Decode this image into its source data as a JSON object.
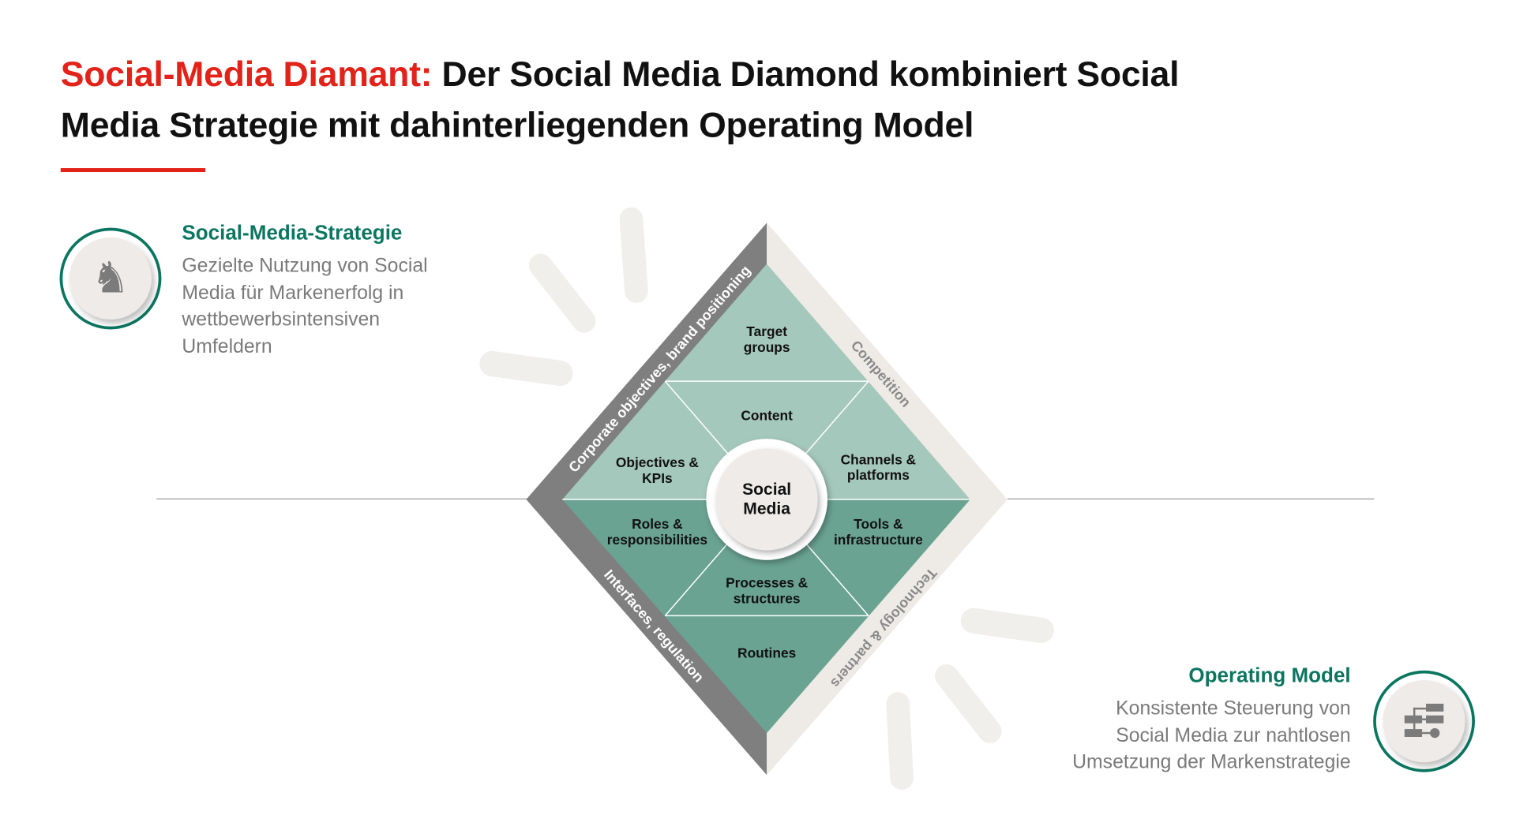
{
  "title": {
    "accent": "Social-Media Diamant:",
    "line1_rest": " Der Social Media Diamond kombiniert Social",
    "line2": "Media Strategie mit dahinterliegenden Operating Model"
  },
  "strategy": {
    "icon": "chess-knight-icon",
    "heading": "Social-Media-Strategie",
    "lines": [
      "Gezielte Nutzung von Social",
      "Media für Markenerfolg in",
      "wettbewerbsintensiven",
      "Umfeldern"
    ]
  },
  "operating": {
    "icon": "org-chart-icon",
    "heading": "Operating Model",
    "lines": [
      "Konsistente Steuerung von",
      "Social Media zur nahtlosen",
      "Umsetzung der Markenstrategie"
    ]
  },
  "diamond": {
    "center": [
      "Social",
      "Media"
    ],
    "segments": {
      "target": [
        "Target",
        "groups"
      ],
      "content": [
        "Content"
      ],
      "objectives": [
        "Objectives &",
        "KPIs"
      ],
      "channels": [
        "Channels &",
        "platforms"
      ],
      "roles": [
        "Roles &",
        "responsibilities"
      ],
      "tools": [
        "Tools &",
        "infrastructure"
      ],
      "processes": [
        "Processes &",
        "structures"
      ],
      "routines": [
        "Routines"
      ]
    },
    "bands": {
      "top_left": "Corporate objectives, brand positioning",
      "top_right": "Competition",
      "bottom_left": "Interfaces, regulation",
      "bottom_right": "Technology & partners"
    }
  },
  "colors": {
    "accent_red": "#e2231a",
    "teal": "#0b7660",
    "upper_segment": "#a5c8bc",
    "lower_segment": "#6aa392",
    "band_dark": "#7f7f7f",
    "band_light": "#eeebe7"
  }
}
